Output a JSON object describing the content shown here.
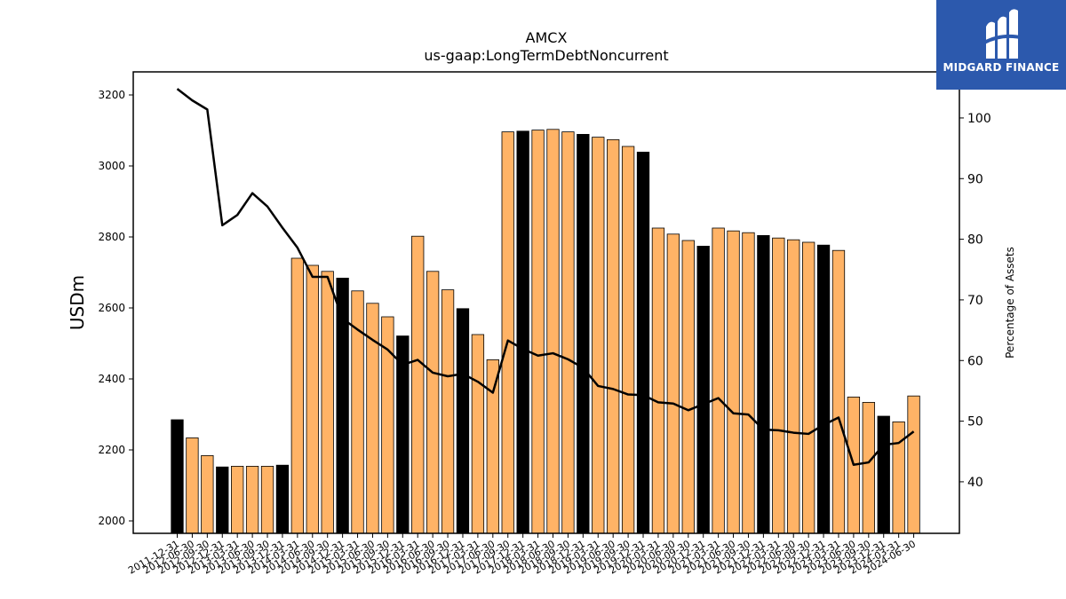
{
  "chart_data": {
    "type": "bar",
    "title": "AMCX",
    "subtitle": "us-gaap:LongTermDebtNoncurrent",
    "ylabel": "USDm",
    "y2label": "Percentage of Assets",
    "ylim": [
      1965,
      3265
    ],
    "y2lim": [
      31.5,
      107.6
    ],
    "yticks": [
      2000,
      2200,
      2400,
      2600,
      2800,
      3000,
      3200
    ],
    "y2ticks": [
      40,
      50,
      60,
      70,
      80,
      90,
      100
    ],
    "categories": [
      "2011-12-31",
      "2012-06-30",
      "2012-09-30",
      "2012-12-31",
      "2013-03-31",
      "2013-06-30",
      "2013-09-30",
      "2013-12-31",
      "2014-03-31",
      "2014-06-30",
      "2014-09-30",
      "2014-12-31",
      "2015-03-31",
      "2015-06-30",
      "2015-09-30",
      "2015-12-31",
      "2016-03-31",
      "2016-06-30",
      "2016-09-30",
      "2016-12-31",
      "2017-03-31",
      "2017-06-30",
      "2017-09-30",
      "2017-12-31",
      "2018-03-31",
      "2018-06-30",
      "2018-09-30",
      "2018-12-31",
      "2019-03-31",
      "2019-06-30",
      "2019-09-30",
      "2019-12-31",
      "2020-03-31",
      "2020-06-30",
      "2020-09-30",
      "2020-12-31",
      "2021-03-31",
      "2021-06-30",
      "2021-09-30",
      "2021-12-31",
      "2022-03-31",
      "2022-06-30",
      "2022-09-30",
      "2022-12-31",
      "2023-03-31",
      "2023-06-30",
      "2023-09-30",
      "2023-12-31",
      "2024-03-31",
      "2024-06-30"
    ],
    "series": [
      {
        "type": "bar",
        "values": [
          2285,
          2234,
          2184,
          2152,
          2154,
          2154,
          2154,
          2157,
          2740,
          2720,
          2703,
          2684,
          2648,
          2613,
          2575,
          2521,
          2802,
          2703,
          2651,
          2598,
          2525,
          2454,
          3096,
          3098,
          3101,
          3103,
          3096,
          3089,
          3081,
          3074,
          3055,
          3039,
          2825,
          2808,
          2790,
          2774,
          2825,
          2817,
          2812,
          2804,
          2797,
          2792,
          2785,
          2777,
          2762,
          2349,
          2334,
          2295,
          2279,
          2352
        ],
        "colors": [
          "#000000",
          "#ffb366",
          "#ffb366",
          "#000000",
          "#ffb366",
          "#ffb366",
          "#ffb366",
          "#000000",
          "#ffb366",
          "#ffb366",
          "#ffb366",
          "#000000",
          "#ffb366",
          "#ffb366",
          "#ffb366",
          "#000000",
          "#ffb366",
          "#ffb366",
          "#ffb366",
          "#000000",
          "#ffb366",
          "#ffb366",
          "#ffb366",
          "#000000",
          "#ffb366",
          "#ffb366",
          "#ffb366",
          "#000000",
          "#ffb366",
          "#ffb366",
          "#ffb366",
          "#000000",
          "#ffb366",
          "#ffb366",
          "#ffb366",
          "#000000",
          "#ffb366",
          "#ffb366",
          "#ffb366",
          "#000000",
          "#ffb366",
          "#ffb366",
          "#ffb366",
          "#000000",
          "#ffb366",
          "#ffb366",
          "#ffb366",
          "#000000",
          "#ffb366",
          "#ffb366"
        ]
      },
      {
        "type": "line",
        "axis": "right",
        "color": "#000000",
        "values": [
          104.8,
          102.9,
          101.4,
          82.3,
          84.0,
          87.6,
          85.4,
          81.9,
          78.6,
          73.8,
          73.8,
          66.9,
          65.1,
          63.4,
          61.8,
          59.3,
          60.1,
          58.0,
          57.4,
          57.8,
          56.5,
          54.7,
          63.3,
          61.9,
          60.8,
          61.2,
          60.2,
          58.8,
          55.8,
          55.3,
          54.4,
          54.3,
          53.1,
          52.9,
          51.8,
          52.8,
          53.8,
          51.3,
          51.1,
          48.6,
          48.5,
          48.1,
          47.9,
          49.4,
          50.6,
          42.8,
          43.2,
          46.1,
          46.4,
          48.3
        ]
      }
    ],
    "grid": false
  },
  "logo": {
    "name": "MIDGARD FINANCE",
    "icon": "midgard-logo-icon"
  }
}
